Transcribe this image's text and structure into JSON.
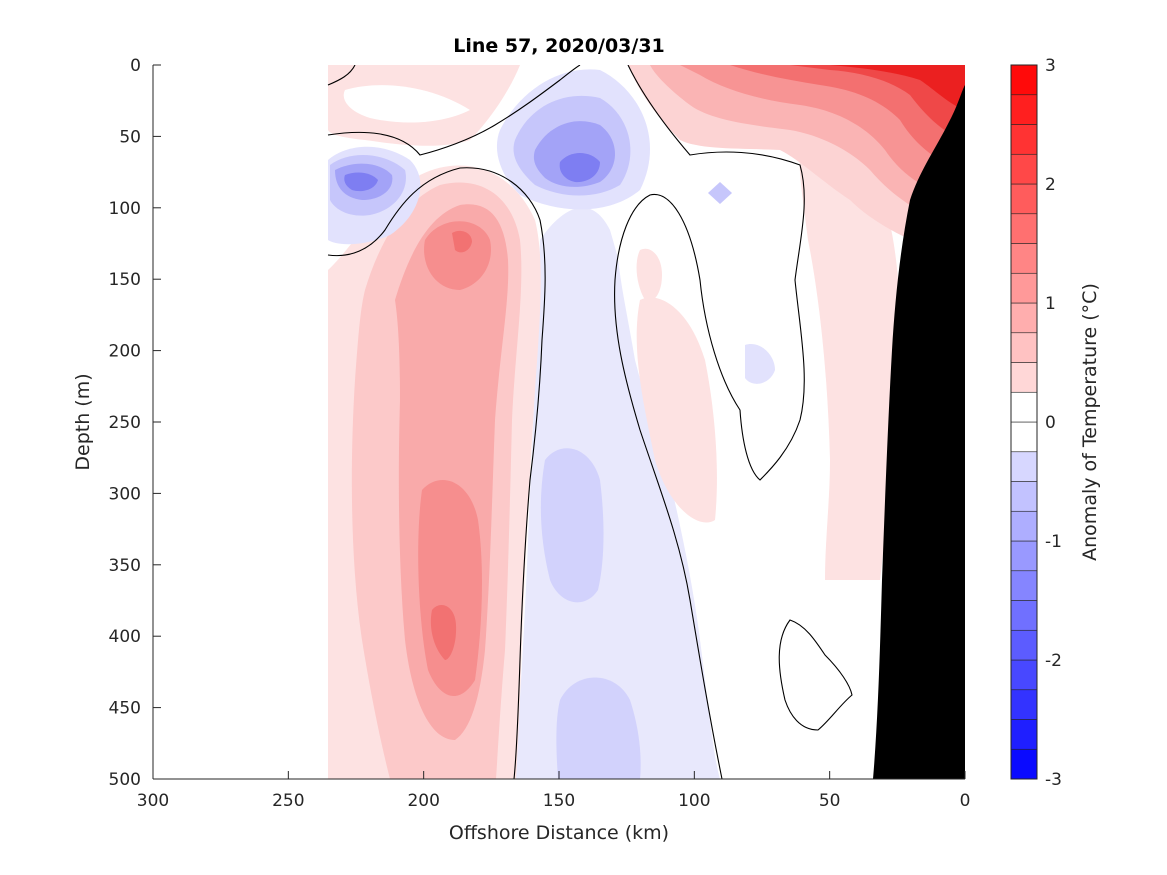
{
  "chart_data": {
    "type": "heatmap",
    "title": "Line 57, 2020/03/31",
    "xlabel": "Offshore Distance (km)",
    "ylabel": "Depth (m)",
    "xlim": [
      300,
      0
    ],
    "ylim": [
      0,
      500
    ],
    "x_reversed": true,
    "y_reversed": true,
    "x_ticks": [
      "300",
      "250",
      "200",
      "150",
      "100",
      "50",
      "0"
    ],
    "x_tick_values": [
      300,
      250,
      200,
      150,
      100,
      50,
      0
    ],
    "y_ticks": [
      "0",
      "50",
      "100",
      "150",
      "200",
      "250",
      "300",
      "350",
      "400",
      "450",
      "500"
    ],
    "y_tick_values": [
      0,
      50,
      100,
      150,
      200,
      250,
      300,
      350,
      400,
      450,
      500
    ],
    "data_x_range": [
      0,
      235
    ],
    "colorbar": {
      "label": "Anomaly of Temperature (°C)",
      "range": [
        -3,
        3
      ],
      "step": 0.25,
      "ticks": [
        "3",
        "2",
        "1",
        "0",
        "-1",
        "-2",
        "-3"
      ],
      "tick_values": [
        3,
        2,
        1,
        0,
        -1,
        -2,
        -3
      ],
      "cold_color": "#0000ff",
      "warm_color": "#ff0000",
      "neutral_color": "#ffffff"
    },
    "zero_contour": true,
    "bathymetry_color": "#000000",
    "features": [
      {
        "kind": "warm",
        "x": 30,
        "depth": 10,
        "value": 2.6
      },
      {
        "kind": "warm",
        "x": 10,
        "depth": 40,
        "value": 2.3
      },
      {
        "kind": "warm",
        "x": 185,
        "depth": 125,
        "value": 1.4
      },
      {
        "kind": "warm",
        "x": 192,
        "depth": 330,
        "value": 1.2
      },
      {
        "kind": "warm",
        "x": 192,
        "depth": 395,
        "value": 1.3
      },
      {
        "kind": "cold",
        "x": 220,
        "depth": 82,
        "value": -1.4
      },
      {
        "kind": "cold",
        "x": 140,
        "depth": 70,
        "value": -1.3
      },
      {
        "kind": "cold",
        "x": 88,
        "depth": 92,
        "value": -0.5
      },
      {
        "kind": "cold",
        "x": 145,
        "depth": 350,
        "value": -0.4
      },
      {
        "kind": "cold",
        "x": 145,
        "depth": 470,
        "value": -0.4
      }
    ],
    "bathymetry": [
      [
        0,
        35
      ],
      [
        5,
        80
      ],
      [
        15,
        130
      ],
      [
        25,
        150
      ],
      [
        35,
        200
      ],
      [
        48,
        330
      ],
      [
        52,
        500
      ]
    ]
  }
}
